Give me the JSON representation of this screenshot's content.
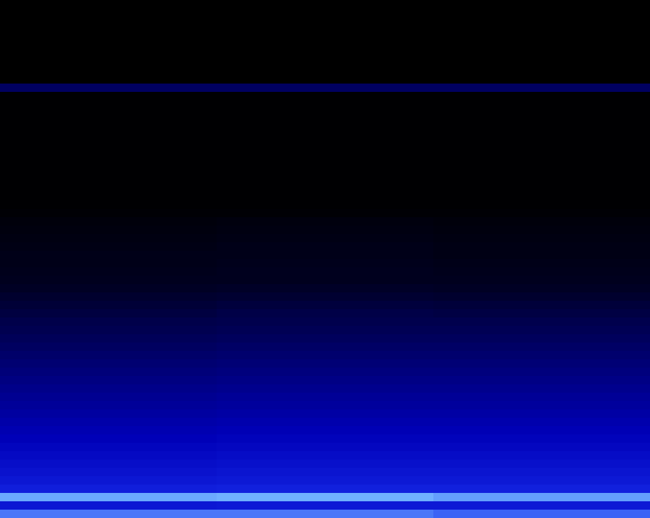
{
  "chart_data": {
    "type": "heatmap",
    "tick_labels": false,
    "cells": [
      [
        0,
        0,
        0
      ],
      [
        0,
        0,
        0
      ],
      [
        0,
        0,
        0
      ],
      [
        0,
        0,
        0
      ],
      [
        0,
        0,
        0
      ],
      [
        0,
        0,
        0
      ],
      [
        0,
        0,
        0
      ],
      [
        0,
        0,
        0
      ],
      [
        0,
        0,
        0
      ],
      [
        0,
        0,
        0
      ],
      [
        0.3,
        0.3,
        0.3
      ],
      [
        0.01,
        0.01,
        0.01
      ],
      [
        0.01,
        0.01,
        0.01
      ],
      [
        0.01,
        0.01,
        0.01
      ],
      [
        0.01,
        0.01,
        0.01
      ],
      [
        0.01,
        0.01,
        0.01
      ],
      [
        0.01,
        0.01,
        0.01
      ],
      [
        0.01,
        0.01,
        0.01
      ],
      [
        0.01,
        0.01,
        0.01
      ],
      [
        0.01,
        0.01,
        0.01
      ],
      [
        0.01,
        0.01,
        0.01
      ],
      [
        0.01,
        0.01,
        0.01
      ],
      [
        0.01,
        0.01,
        0.01
      ],
      [
        0.01,
        0.01,
        0.01
      ],
      [
        0.01,
        0.01,
        0.01
      ],
      [
        0.02,
        0.02,
        0.02
      ],
      [
        0.04,
        0.05,
        0.04
      ],
      [
        0.05,
        0.06,
        0.05
      ],
      [
        0.06,
        0.07,
        0.06
      ],
      [
        0.07,
        0.08,
        0.07
      ],
      [
        0.08,
        0.08,
        0.07
      ],
      [
        0.08,
        0.09,
        0.08
      ],
      [
        0.09,
        0.1,
        0.09
      ],
      [
        0.1,
        0.1,
        0.1
      ],
      [
        0.12,
        0.13,
        0.12
      ],
      [
        0.15,
        0.16,
        0.15
      ],
      [
        0.18,
        0.2,
        0.19
      ],
      [
        0.21,
        0.23,
        0.22
      ],
      [
        0.24,
        0.25,
        0.25
      ],
      [
        0.26,
        0.27,
        0.27
      ],
      [
        0.28,
        0.29,
        0.29
      ],
      [
        0.3,
        0.31,
        0.31
      ],
      [
        0.32,
        0.33,
        0.33
      ],
      [
        0.34,
        0.35,
        0.35
      ],
      [
        0.36,
        0.37,
        0.37
      ],
      [
        0.38,
        0.39,
        0.39
      ],
      [
        0.4,
        0.41,
        0.41
      ],
      [
        0.42,
        0.43,
        0.43
      ],
      [
        0.44,
        0.45,
        0.45
      ],
      [
        0.46,
        0.47,
        0.47
      ],
      [
        0.48,
        0.49,
        0.49
      ],
      [
        0.5,
        0.51,
        0.51
      ],
      [
        0.52,
        0.53,
        0.53
      ],
      [
        0.54,
        0.55,
        0.55
      ],
      [
        0.56,
        0.57,
        0.57
      ],
      [
        0.58,
        0.59,
        0.59
      ],
      [
        0.6,
        0.61,
        0.61
      ],
      [
        0.62,
        0.63,
        0.63
      ],
      [
        0.65,
        0.66,
        0.66
      ],
      [
        0.85,
        0.86,
        0.84
      ],
      [
        0.62,
        0.63,
        0.63
      ],
      [
        0.8,
        0.8,
        0.78
      ]
    ]
  }
}
